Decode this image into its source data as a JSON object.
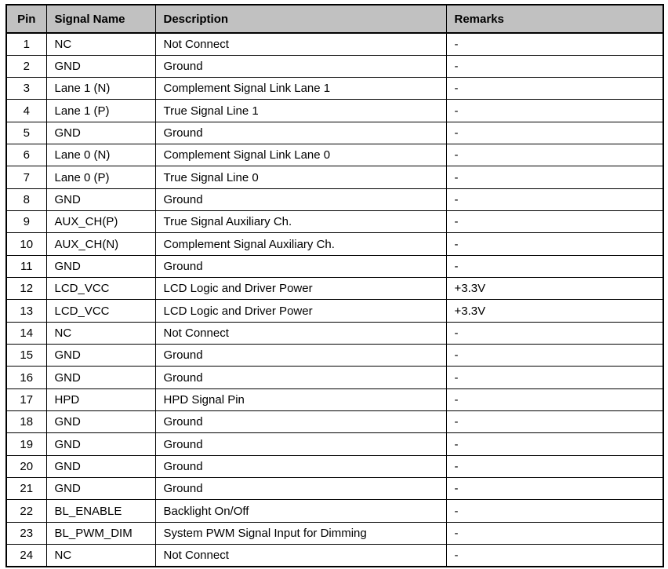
{
  "colors": {
    "header_bg": "#c1c1c1",
    "border": "#000000",
    "text": "#000000",
    "page_bg": "#ffffff"
  },
  "table": {
    "columns": [
      {
        "key": "pin",
        "label": "Pin"
      },
      {
        "key": "signal",
        "label": "Signal Name"
      },
      {
        "key": "description",
        "label": "Description"
      },
      {
        "key": "remarks",
        "label": "Remarks"
      }
    ],
    "rows": [
      {
        "pin": "1",
        "signal": "NC",
        "description": "Not Connect",
        "remarks": "-"
      },
      {
        "pin": "2",
        "signal": "GND",
        "description": "Ground",
        "remarks": "-"
      },
      {
        "pin": "3",
        "signal": "Lane 1 (N)",
        "description": "Complement Signal Link Lane 1",
        "remarks": "-"
      },
      {
        "pin": "4",
        "signal": "Lane 1 (P)",
        "description": "True Signal Line 1",
        "remarks": "-"
      },
      {
        "pin": "5",
        "signal": "GND",
        "description": "Ground",
        "remarks": "-"
      },
      {
        "pin": "6",
        "signal": "Lane 0 (N)",
        "description": "Complement Signal Link Lane 0",
        "remarks": "-"
      },
      {
        "pin": "7",
        "signal": "Lane 0 (P)",
        "description": "True Signal Line 0",
        "remarks": "-"
      },
      {
        "pin": "8",
        "signal": "GND",
        "description": "Ground",
        "remarks": "-"
      },
      {
        "pin": "9",
        "signal": "AUX_CH(P)",
        "description": "True Signal Auxiliary Ch.",
        "remarks": "-"
      },
      {
        "pin": "10",
        "signal": "AUX_CH(N)",
        "description": "Complement Signal Auxiliary Ch.",
        "remarks": "-"
      },
      {
        "pin": "11",
        "signal": "GND",
        "description": "Ground",
        "remarks": "-"
      },
      {
        "pin": "12",
        "signal": "LCD_VCC",
        "description": "LCD Logic and Driver Power",
        "remarks": "+3.3V"
      },
      {
        "pin": "13",
        "signal": "LCD_VCC",
        "description": "LCD Logic and Driver Power",
        "remarks": "+3.3V"
      },
      {
        "pin": "14",
        "signal": "NC",
        "description": "Not Connect",
        "remarks": "-"
      },
      {
        "pin": "15",
        "signal": "GND",
        "description": "Ground",
        "remarks": "-"
      },
      {
        "pin": "16",
        "signal": "GND",
        "description": "Ground",
        "remarks": "-"
      },
      {
        "pin": "17",
        "signal": "HPD",
        "description": "HPD Signal Pin",
        "remarks": "-"
      },
      {
        "pin": "18",
        "signal": "GND",
        "description": "Ground",
        "remarks": "-"
      },
      {
        "pin": "19",
        "signal": "GND",
        "description": "Ground",
        "remarks": "-"
      },
      {
        "pin": "20",
        "signal": "GND",
        "description": "Ground",
        "remarks": "-"
      },
      {
        "pin": "21",
        "signal": "GND",
        "description": "Ground",
        "remarks": "-"
      },
      {
        "pin": "22",
        "signal": "BL_ENABLE",
        "description": "Backlight On/Off",
        "remarks": "-"
      },
      {
        "pin": "23",
        "signal": "BL_PWM_DIM",
        "description": "System PWM Signal Input for Dimming",
        "remarks": "-"
      },
      {
        "pin": "24",
        "signal": "NC",
        "description": "Not Connect",
        "remarks": "-"
      }
    ]
  }
}
